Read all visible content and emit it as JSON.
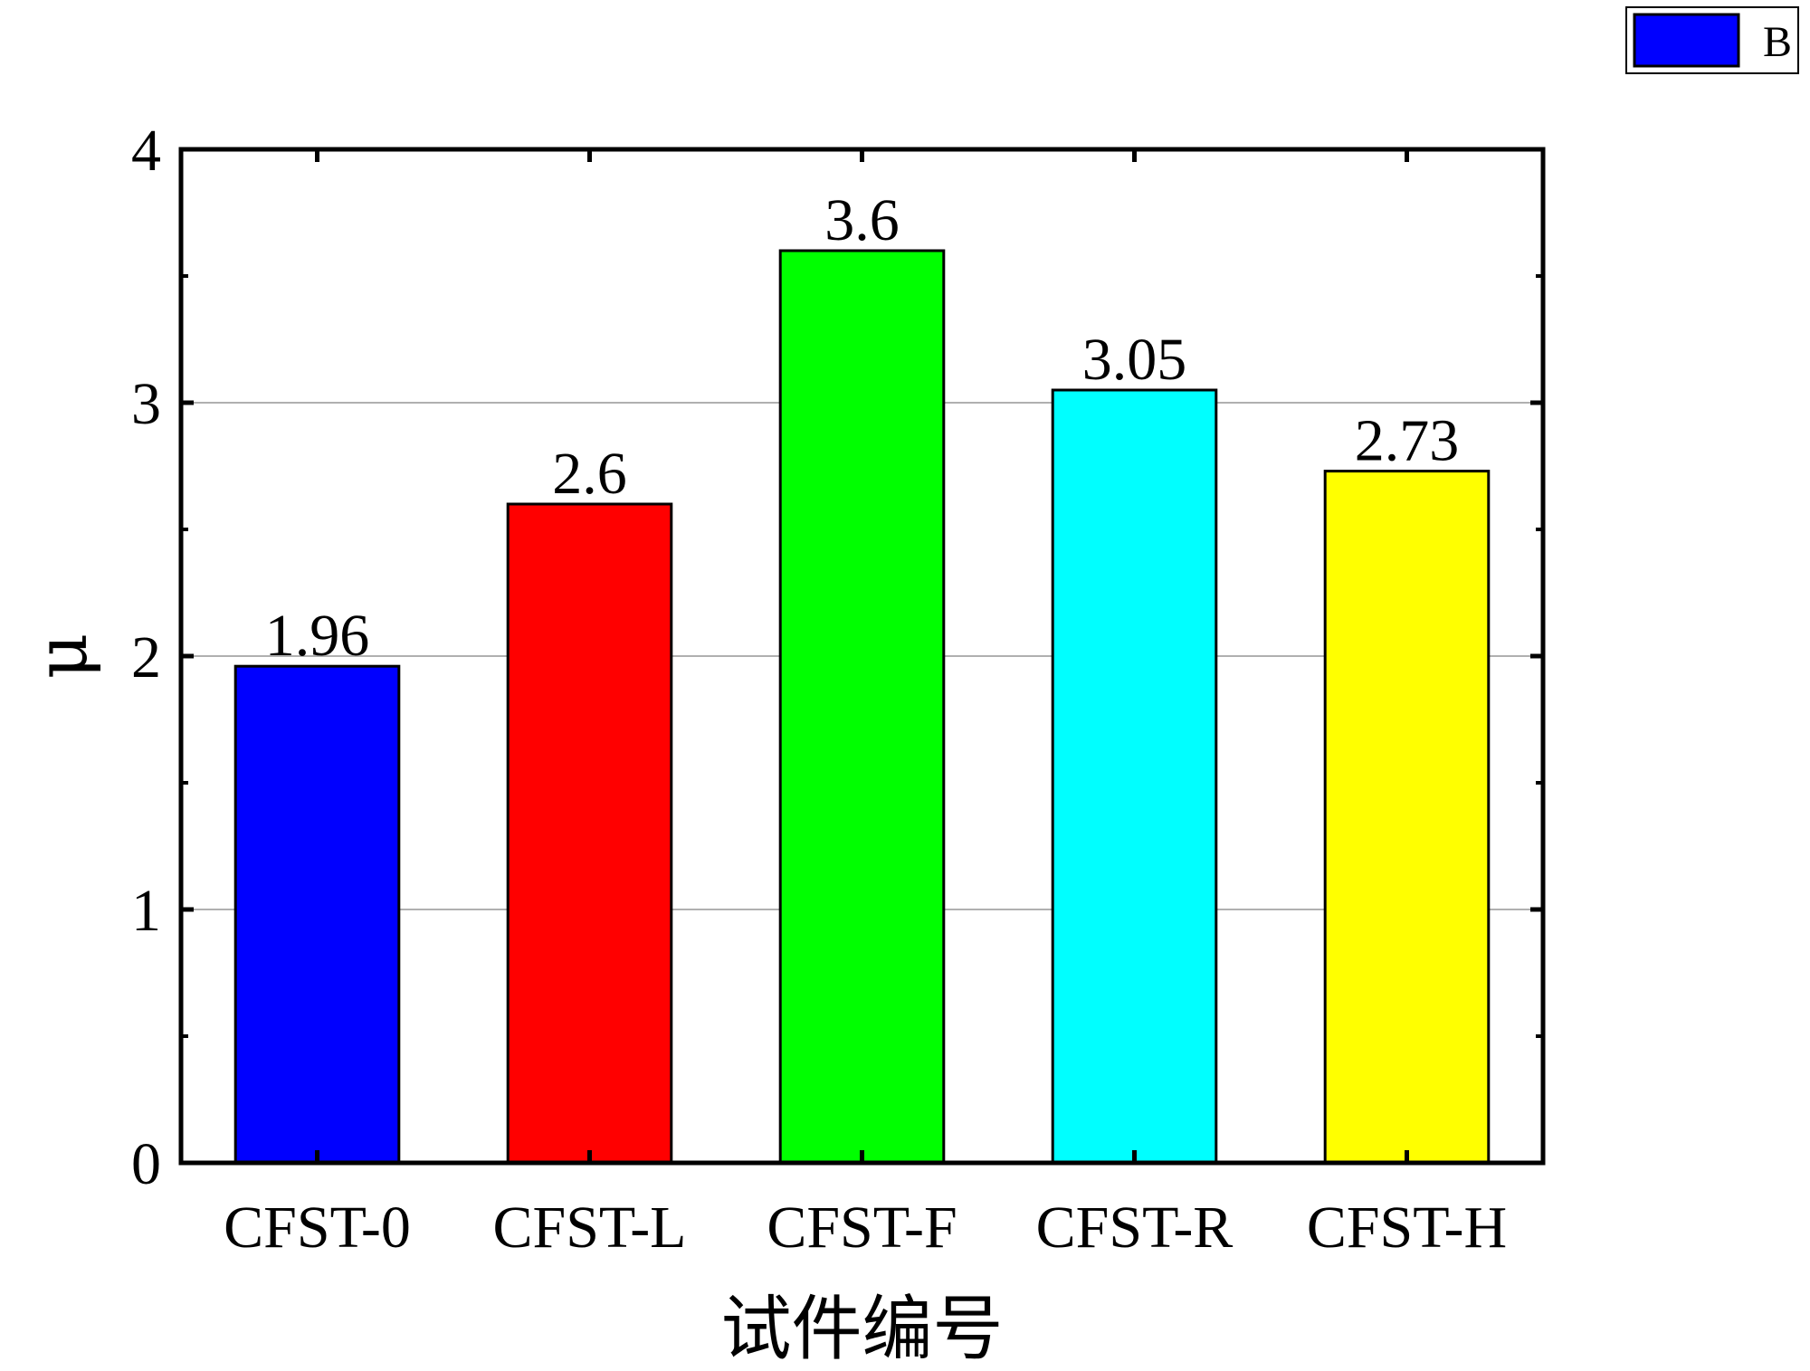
{
  "chart_data": {
    "type": "bar",
    "categories": [
      "CFST-0",
      "CFST-L",
      "CFST-F",
      "CFST-R",
      "CFST-H"
    ],
    "values": [
      1.96,
      2.6,
      3.6,
      3.05,
      2.73
    ],
    "data_labels": [
      "1.96",
      "2.6",
      "3.6",
      "3.05",
      "2.73"
    ],
    "bar_colors": [
      "#0000ff",
      "#ff0000",
      "#00ff00",
      "#00ffff",
      "#ffff00"
    ],
    "xlabel": "试件编号",
    "ylabel": "μ",
    "ylim": [
      0,
      4
    ],
    "yticks": [
      0,
      1,
      2,
      3,
      4
    ],
    "grid": "horizontal",
    "legend": {
      "placement": "top-right",
      "entries": [
        {
          "name": "B",
          "color": "#0000ff"
        }
      ]
    }
  }
}
